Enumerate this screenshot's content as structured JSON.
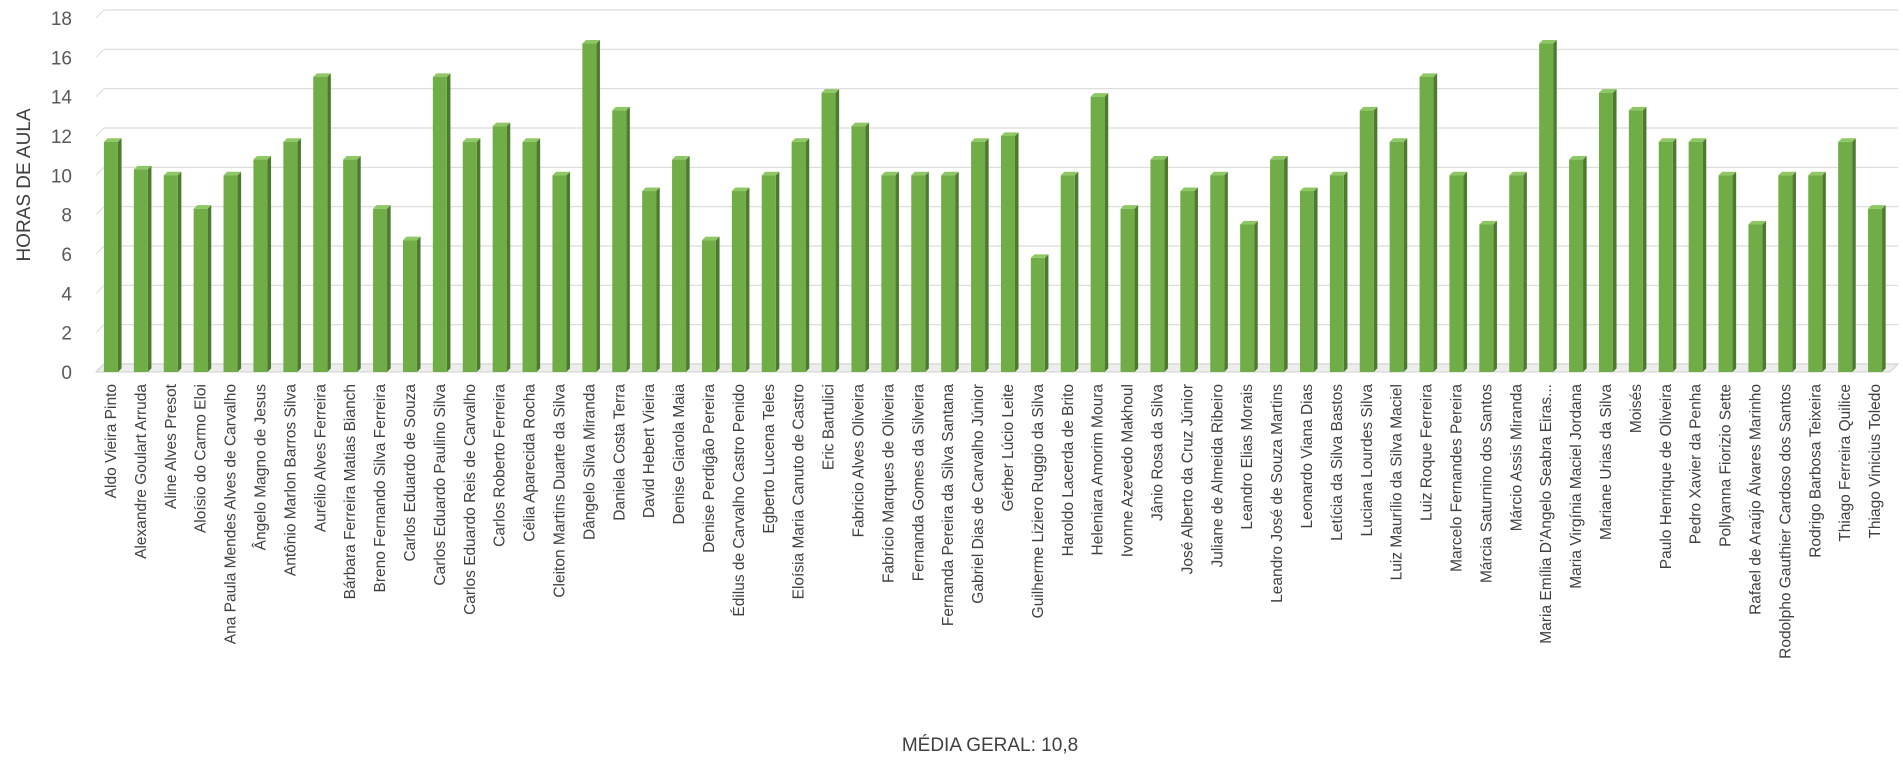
{
  "chart_data": {
    "type": "bar",
    "title": "",
    "xlabel": "MÉDIA GERAL: 10,8",
    "ylabel": "HORAS DE AULA",
    "ylim": [
      0,
      18
    ],
    "yticks": [
      "0",
      "2",
      "4",
      "6",
      "8",
      "10",
      "12",
      "14",
      "16",
      "18"
    ],
    "grid": true,
    "style": "3d-column",
    "colors": {
      "bar_front": "#70ad47",
      "bar_side": "#4e7a30",
      "bar_top": "#8fc765",
      "grid": "#d9d9d9"
    },
    "categories": [
      "Aldo Vieira Pinto",
      "Alexandre Goulart Arruda",
      "Aline Alves Presot",
      "Aloísio do Carmo Eloi",
      "Ana Paula Mendes Alves de Carvalho",
      "Ângelo Magno de Jesus",
      "Antônio Marlon Barros Silva",
      "Aurélio Alves Ferreira",
      "Bárbara Ferreira Matias Bianch",
      "Breno Fernando Silva Ferreira",
      "Carlos Eduardo de Souza",
      "Carlos Eduardo Paulino Silva",
      "Carlos Eduardo Reis de Carvalho",
      "Carlos Roberto Ferreira",
      "Célia Aparecida Rocha",
      "Cleiton Martins Duarte da Silva",
      "Dângelo Silva Miranda",
      "Daniela Costa Terra",
      "David Hebert Vieira",
      "Denise Giarola Maia",
      "Denise Perdigão Pereira",
      "Édilus de Carvalho Castro Penido",
      "Egberto Lucena Teles",
      "Eloísia Maria Canuto de Castro",
      "Eric Bartulici",
      "Fabricio Alves Oliveira",
      "Fabrício Marques de Oliveira",
      "Fernanda Gomes da Silveira",
      "Fernanda Pereira da Silva Santana",
      "Gabriel Dias de Carvalho Júnior",
      "Gérber Lúcio Leite",
      "Guilherme Liziero Ruggio da Silva",
      "Haroldo Lacerda de Brito",
      "Heleniara Amorim Moura",
      "Ivonne Azevedo Makhoul",
      "Jânio Rosa da Silva",
      "José Alberto da Cruz Júnior",
      "Juliane de Almeida Ribeiro",
      "Leandro Elias Morais",
      "Leandro José de Souza Martins",
      "Leonardo Viana Dias",
      "Letícia da Silva Bastos",
      "Luciana Lourdes Silva",
      "Luiz Maurílio da Silva Maciel",
      "Luiz Roque Ferreira",
      "Marcelo Fernandes Pereira",
      "Márcia Saturnino dos Santos",
      "Márcio Assis Miranda",
      "Maria Emília D'Angelo Seabra Eiras...",
      "Maria Virgínia Maciel Jordana",
      "Mariane Urias da Silva",
      "Moisés",
      "Paulo Henrique de Oliveira",
      "Pedro Xavier da Penha",
      "Pollyanna Fiorizio Sette",
      "Rafael de Araújo Álvares Marinho",
      "Rodolpho Gauthier Cardoso dos Santos",
      "Rodrigo Barbosa Teixeira",
      "Thiago Ferreira Quilice",
      "Thiago Vinicius Toledo"
    ],
    "values": [
      11.7,
      10.3,
      10.0,
      8.3,
      10.0,
      10.8,
      11.7,
      15.0,
      10.8,
      8.3,
      6.7,
      15.0,
      11.7,
      12.5,
      11.7,
      10.0,
      16.7,
      13.3,
      9.2,
      10.8,
      6.7,
      9.2,
      10.0,
      11.7,
      14.2,
      12.5,
      10.0,
      10.0,
      10.0,
      11.7,
      12.0,
      5.8,
      10.0,
      14.0,
      8.3,
      10.8,
      9.2,
      10.0,
      7.5,
      10.8,
      9.2,
      10.0,
      13.3,
      11.7,
      15.0,
      10.0,
      7.5,
      10.0,
      16.7,
      10.8,
      14.2,
      13.3,
      11.7,
      11.7,
      10.0,
      7.5,
      10.0,
      10.0,
      11.7,
      8.3
    ]
  }
}
